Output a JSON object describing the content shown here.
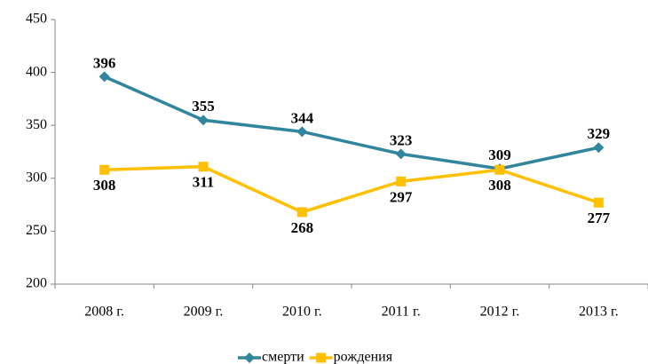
{
  "chart_data": {
    "type": "line",
    "categories": [
      "2008 г.",
      "2009 г.",
      "2010 г.",
      "2011 г.",
      "2012 г.",
      "2013 г."
    ],
    "series": [
      {
        "name": "смерти",
        "color": "#31859c",
        "marker": "diamond",
        "values": [
          396,
          355,
          344,
          323,
          309,
          329
        ]
      },
      {
        "name": "рождения",
        "color": "#ffc000",
        "marker": "square",
        "values": [
          308,
          311,
          268,
          297,
          308,
          277
        ]
      }
    ],
    "ylim": [
      200,
      450
    ],
    "yticks": [
      200,
      250,
      300,
      350,
      400,
      450
    ],
    "grid": false,
    "legend": "bottom"
  }
}
